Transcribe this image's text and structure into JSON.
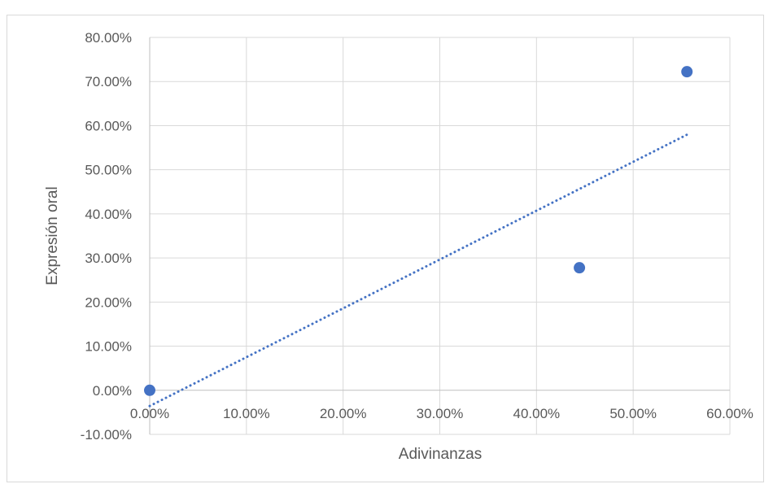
{
  "chart_data": {
    "type": "scatter",
    "title": "",
    "xlabel": "Adivinanzas",
    "ylabel": "Expresión oral",
    "xlim": [
      0,
      60
    ],
    "ylim": [
      -10,
      80
    ],
    "x_ticks": [
      0,
      10,
      20,
      30,
      40,
      50,
      60
    ],
    "y_ticks": [
      -10,
      0,
      10,
      20,
      30,
      40,
      50,
      60,
      70,
      80
    ],
    "x_tick_labels": [
      "0.00%",
      "10.00%",
      "20.00%",
      "30.00%",
      "40.00%",
      "50.00%",
      "60.00%"
    ],
    "y_tick_labels": [
      "-10.00%",
      "0.00%",
      "10.00%",
      "20.00%",
      "30.00%",
      "40.00%",
      "50.00%",
      "60.00%",
      "70.00%",
      "80.00%"
    ],
    "grid": true,
    "legend": "none",
    "series": [
      {
        "points": [
          {
            "x": 0.0,
            "y": 0.0
          },
          {
            "x": 44.44,
            "y": 27.78
          },
          {
            "x": 55.56,
            "y": 72.22
          }
        ],
        "color": "#4472c4"
      }
    ],
    "trendline": {
      "type": "linear",
      "style": "dotted",
      "color": "#4472c4",
      "x_range": [
        0,
        55.56
      ]
    }
  }
}
